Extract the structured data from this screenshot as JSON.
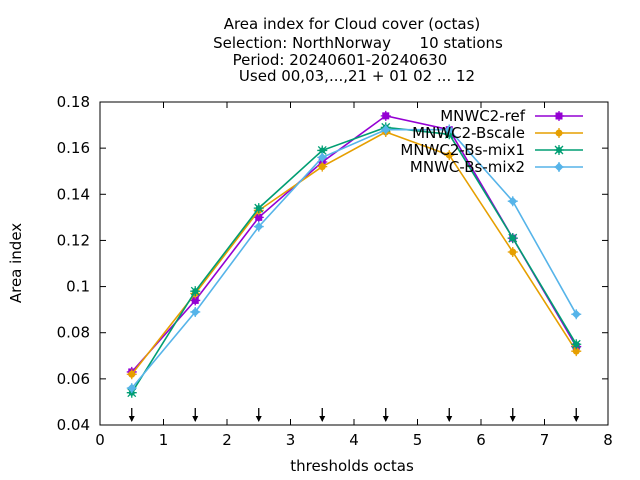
{
  "chart_data": {
    "type": "line",
    "title_lines": [
      "Area index  for Cloud cover (octas)",
      "Selection: NorthNorway      10 stations",
      "Period: 20240601-20240630",
      "Used 00,03,...,21 + 01 02 ... 12"
    ],
    "xlabel": "thresholds octas",
    "ylabel": "Area index",
    "xlim": [
      0,
      8
    ],
    "ylim": [
      0.04,
      0.18
    ],
    "x_ticks": [
      "0",
      "1",
      "2",
      "3",
      "4",
      "5",
      "6",
      "7",
      "8"
    ],
    "y_ticks": [
      "0.04",
      "0.06",
      "0.08",
      "0.1",
      "0.12",
      "0.14",
      "0.16",
      "0.18"
    ],
    "grid": false,
    "legend_position": "top-right",
    "x": [
      0.5,
      1.5,
      2.5,
      3.5,
      4.5,
      5.5,
      6.5,
      7.5
    ],
    "arrow_markers_x": [
      0.5,
      1.5,
      2.5,
      3.5,
      4.5,
      5.5,
      6.5,
      7.5
    ],
    "series": [
      {
        "name": "MNWC2-ref",
        "color": "#9400d3",
        "marker": "square-plus",
        "values": [
          0.063,
          0.094,
          0.13,
          0.154,
          0.174,
          0.168,
          0.121,
          0.074
        ]
      },
      {
        "name": "MNWC2-Bscale",
        "color": "#e69f00",
        "marker": "circle-plus",
        "values": [
          0.062,
          0.097,
          0.133,
          0.152,
          0.167,
          0.157,
          0.115,
          0.072
        ]
      },
      {
        "name": "MNWC2-Bs-mix1",
        "color": "#009e73",
        "marker": "star",
        "values": [
          0.054,
          0.098,
          0.134,
          0.159,
          0.169,
          0.166,
          0.121,
          0.075
        ]
      },
      {
        "name": "MNWC-Bs-mix2",
        "color": "#56b4e9",
        "marker": "diamond-plus",
        "values": [
          0.056,
          0.089,
          0.126,
          0.156,
          0.168,
          0.168,
          0.137,
          0.088
        ]
      }
    ]
  }
}
